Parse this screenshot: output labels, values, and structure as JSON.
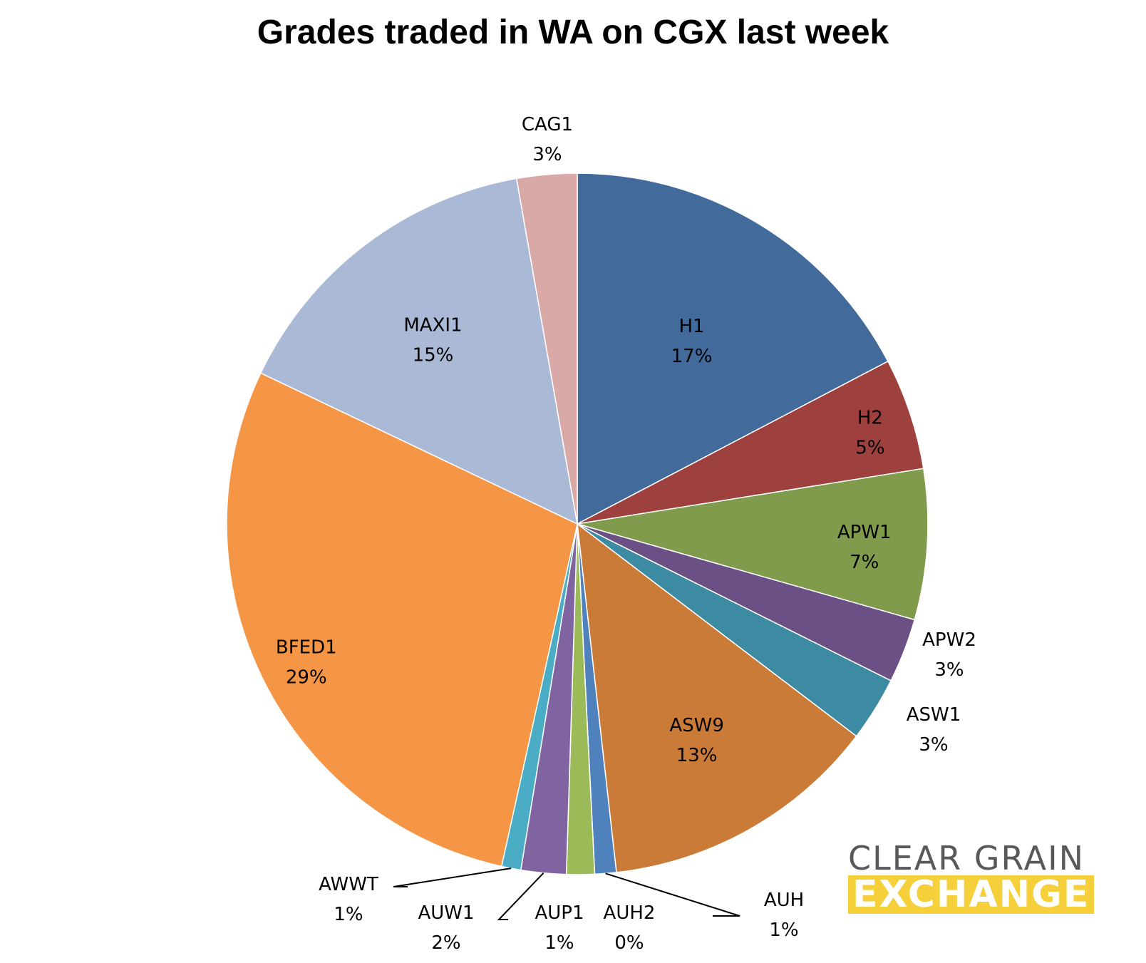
{
  "chart_data": {
    "type": "pie",
    "title": "Grades traded in WA on CGX last week",
    "slices": [
      {
        "label": "H1",
        "pct_label": "17%",
        "value": 17.5,
        "color": "#426a9b"
      },
      {
        "label": "H2",
        "pct_label": "5%",
        "value": 5.2,
        "color": "#9e413e"
      },
      {
        "label": "APW1",
        "pct_label": "7%",
        "value": 7.0,
        "color": "#809b4b"
      },
      {
        "label": "APW2",
        "pct_label": "3%",
        "value": 3.0,
        "color": "#6a5085"
      },
      {
        "label": "ASW1",
        "pct_label": "3%",
        "value": 3.0,
        "color": "#3d8ba2"
      },
      {
        "label": "ASW9",
        "pct_label": "13%",
        "value": 13.0,
        "color": "#cb7b38"
      },
      {
        "label": "AUH",
        "pct_label": "1%",
        "value": 1.0,
        "color": "#4f81bd"
      },
      {
        "label": "AUH2",
        "pct_label": "0%",
        "value": 0.0,
        "color": "#c0504d"
      },
      {
        "label": "AUP1",
        "pct_label": "1%",
        "value": 1.3,
        "color": "#9bbb59"
      },
      {
        "label": "AUW1",
        "pct_label": "2%",
        "value": 2.1,
        "color": "#8064a2"
      },
      {
        "label": "AWWT",
        "pct_label": "1%",
        "value": 0.9,
        "color": "#4bacc6"
      },
      {
        "label": "BFED1",
        "pct_label": "29%",
        "value": 28.9,
        "color": "#f59647"
      },
      {
        "label": "MAXI1",
        "pct_label": "15%",
        "value": 15.3,
        "color": "#aab9d6"
      },
      {
        "label": "CAG1",
        "pct_label": "3%",
        "value": 2.8,
        "color": "#d9a9a8"
      }
    ]
  },
  "logo": {
    "line1": "CLEAR GRAIN",
    "line2": "EXCHANGE",
    "colors": {
      "text": "#58595b",
      "band": "#f6d03a"
    }
  }
}
